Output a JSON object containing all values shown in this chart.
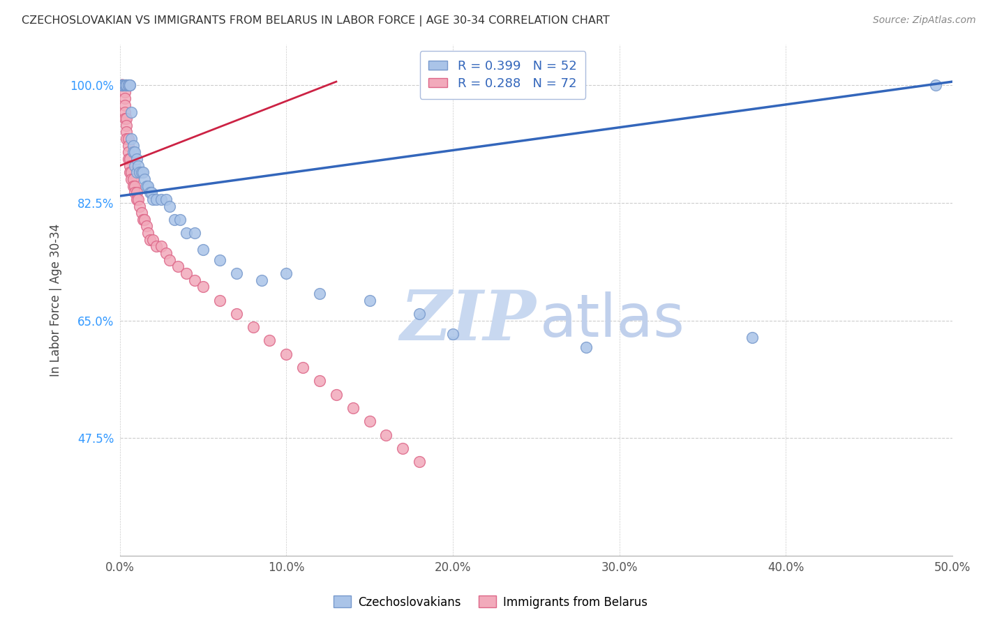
{
  "title": "CZECHOSLOVAKIAN VS IMMIGRANTS FROM BELARUS IN LABOR FORCE | AGE 30-34 CORRELATION CHART",
  "source": "Source: ZipAtlas.com",
  "ylabel": "In Labor Force | Age 30-34",
  "xlim": [
    0.0,
    0.5
  ],
  "ylim": [
    0.3,
    1.06
  ],
  "yticks": [
    0.475,
    0.65,
    0.825,
    1.0
  ],
  "ytick_labels": [
    "47.5%",
    "65.0%",
    "82.5%",
    "100.0%"
  ],
  "xtick_labels": [
    "0.0%",
    "10.0%",
    "20.0%",
    "30.0%",
    "40.0%",
    "50.0%"
  ],
  "xticks": [
    0.0,
    0.1,
    0.2,
    0.3,
    0.4,
    0.5
  ],
  "blue_R": 0.399,
  "blue_N": 52,
  "pink_R": 0.288,
  "pink_N": 72,
  "blue_color": "#aac4e8",
  "pink_color": "#f2aabb",
  "blue_edge": "#7799cc",
  "pink_edge": "#dd6688",
  "blue_line_color": "#3366bb",
  "pink_line_color": "#cc2244",
  "watermark_zip_color": "#c8d8f0",
  "watermark_atlas_color": "#c0d0ec",
  "grid_color": "#cccccc",
  "title_color": "#333333",
  "axis_label_color": "#444444",
  "tick_color_y": "#3399ff",
  "tick_color_x": "#555555",
  "blue_scatter_x": [
    0.001,
    0.001,
    0.002,
    0.002,
    0.003,
    0.003,
    0.004,
    0.004,
    0.004,
    0.005,
    0.005,
    0.005,
    0.006,
    0.006,
    0.007,
    0.007,
    0.008,
    0.008,
    0.009,
    0.009,
    0.01,
    0.01,
    0.011,
    0.012,
    0.013,
    0.014,
    0.015,
    0.016,
    0.017,
    0.018,
    0.019,
    0.02,
    0.022,
    0.025,
    0.028,
    0.03,
    0.033,
    0.036,
    0.04,
    0.045,
    0.05,
    0.06,
    0.07,
    0.085,
    0.1,
    0.12,
    0.15,
    0.18,
    0.2,
    0.28,
    0.38,
    0.49
  ],
  "blue_scatter_y": [
    1.0,
    1.0,
    1.0,
    1.0,
    1.0,
    1.0,
    1.0,
    1.0,
    1.0,
    1.0,
    1.0,
    1.0,
    1.0,
    1.0,
    0.96,
    0.92,
    0.91,
    0.9,
    0.9,
    0.88,
    0.89,
    0.87,
    0.88,
    0.87,
    0.87,
    0.87,
    0.86,
    0.85,
    0.85,
    0.84,
    0.84,
    0.83,
    0.83,
    0.83,
    0.83,
    0.82,
    0.8,
    0.8,
    0.78,
    0.78,
    0.755,
    0.74,
    0.72,
    0.71,
    0.72,
    0.69,
    0.68,
    0.66,
    0.63,
    0.61,
    0.625,
    1.0
  ],
  "pink_scatter_x": [
    0.001,
    0.001,
    0.001,
    0.001,
    0.001,
    0.001,
    0.001,
    0.001,
    0.001,
    0.001,
    0.002,
    0.002,
    0.002,
    0.002,
    0.002,
    0.002,
    0.002,
    0.003,
    0.003,
    0.003,
    0.003,
    0.003,
    0.003,
    0.004,
    0.004,
    0.004,
    0.004,
    0.005,
    0.005,
    0.005,
    0.005,
    0.006,
    0.006,
    0.006,
    0.007,
    0.007,
    0.008,
    0.008,
    0.009,
    0.009,
    0.01,
    0.01,
    0.011,
    0.012,
    0.013,
    0.014,
    0.015,
    0.016,
    0.017,
    0.018,
    0.02,
    0.022,
    0.025,
    0.028,
    0.03,
    0.035,
    0.04,
    0.045,
    0.05,
    0.06,
    0.07,
    0.08,
    0.09,
    0.1,
    0.11,
    0.12,
    0.13,
    0.14,
    0.15,
    0.16,
    0.17,
    0.18
  ],
  "pink_scatter_y": [
    1.0,
    1.0,
    1.0,
    1.0,
    1.0,
    1.0,
    1.0,
    1.0,
    1.0,
    1.0,
    1.0,
    1.0,
    1.0,
    1.0,
    1.0,
    1.0,
    1.0,
    1.0,
    0.99,
    0.98,
    0.97,
    0.96,
    0.95,
    0.95,
    0.94,
    0.93,
    0.92,
    0.92,
    0.91,
    0.9,
    0.89,
    0.89,
    0.88,
    0.87,
    0.87,
    0.86,
    0.86,
    0.85,
    0.85,
    0.84,
    0.84,
    0.83,
    0.83,
    0.82,
    0.81,
    0.8,
    0.8,
    0.79,
    0.78,
    0.77,
    0.77,
    0.76,
    0.76,
    0.75,
    0.74,
    0.73,
    0.72,
    0.71,
    0.7,
    0.68,
    0.66,
    0.64,
    0.62,
    0.6,
    0.58,
    0.56,
    0.54,
    0.52,
    0.5,
    0.48,
    0.46,
    0.44
  ],
  "blue_trendline_x": [
    0.0,
    0.5
  ],
  "blue_trendline_y": [
    0.835,
    1.005
  ],
  "pink_trendline_x": [
    0.0,
    0.13
  ],
  "pink_trendline_y": [
    0.88,
    1.005
  ]
}
